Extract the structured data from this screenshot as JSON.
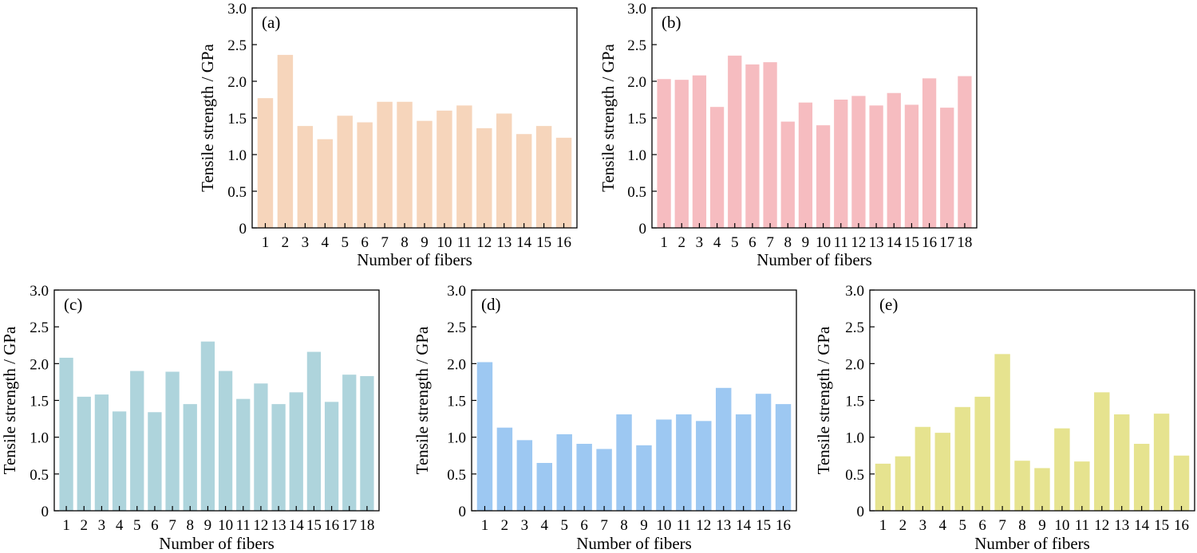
{
  "chart_data": [
    {
      "type": "bar",
      "panel_label": "(a)",
      "xlabel": "Number of fibers",
      "ylabel": "Tensile strength / GPa",
      "ylim": [
        0,
        3.0
      ],
      "yticks": [
        "0",
        "0.5",
        "1.0",
        "1.5",
        "2.0",
        "2.5",
        "3.0"
      ],
      "bar_color": "#f6d5bb",
      "categories": [
        "1",
        "2",
        "3",
        "4",
        "5",
        "6",
        "7",
        "8",
        "9",
        "10",
        "11",
        "12",
        "13",
        "14",
        "15",
        "16"
      ],
      "values": [
        1.77,
        2.36,
        1.39,
        1.21,
        1.53,
        1.44,
        1.72,
        1.72,
        1.46,
        1.6,
        1.67,
        1.36,
        1.56,
        1.28,
        1.39,
        1.23
      ]
    },
    {
      "type": "bar",
      "panel_label": "(b)",
      "xlabel": "Number of fibers",
      "ylabel": "Tensile strength / GPa",
      "ylim": [
        0,
        3.0
      ],
      "yticks": [
        "0",
        "0.5",
        "1.0",
        "1.5",
        "2.0",
        "2.5",
        "3.0"
      ],
      "bar_color": "#f6bcc0",
      "categories": [
        "1",
        "2",
        "3",
        "4",
        "5",
        "6",
        "7",
        "8",
        "9",
        "10",
        "11",
        "12",
        "13",
        "14",
        "15",
        "16",
        "17",
        "18"
      ],
      "values": [
        2.03,
        2.02,
        2.08,
        1.65,
        2.35,
        2.23,
        2.26,
        1.45,
        1.71,
        1.4,
        1.75,
        1.8,
        1.67,
        1.84,
        1.68,
        2.04,
        1.64,
        2.07
      ]
    },
    {
      "type": "bar",
      "panel_label": "(c)",
      "xlabel": "Number of fibers",
      "ylabel": "Tensile strength / GPa",
      "ylim": [
        0,
        3.0
      ],
      "yticks": [
        "0",
        "0.5",
        "1.0",
        "1.5",
        "2.0",
        "2.5",
        "3.0"
      ],
      "bar_color": "#aed4dc",
      "categories": [
        "1",
        "2",
        "3",
        "4",
        "5",
        "6",
        "7",
        "8",
        "9",
        "10",
        "11",
        "12",
        "13",
        "14",
        "15",
        "16",
        "17",
        "18"
      ],
      "values": [
        2.08,
        1.55,
        1.58,
        1.35,
        1.9,
        1.34,
        1.89,
        1.45,
        2.3,
        1.9,
        1.52,
        1.73,
        1.45,
        1.61,
        2.16,
        1.48,
        1.85,
        1.83
      ]
    },
    {
      "type": "bar",
      "panel_label": "(d)",
      "xlabel": "Number of fibers",
      "ylabel": "Tensile strength / GPa",
      "ylim": [
        0,
        3.0
      ],
      "yticks": [
        "0",
        "0.5",
        "1.0",
        "1.5",
        "2.0",
        "2.5",
        "3.0"
      ],
      "bar_color": "#9dc8f2",
      "categories": [
        "1",
        "2",
        "3",
        "4",
        "5",
        "6",
        "7",
        "8",
        "9",
        "10",
        "11",
        "12",
        "13",
        "14",
        "15",
        "16"
      ],
      "values": [
        2.02,
        1.13,
        0.96,
        0.65,
        1.04,
        0.91,
        0.84,
        1.31,
        0.89,
        1.24,
        1.31,
        1.22,
        1.67,
        1.31,
        1.59,
        1.45
      ]
    },
    {
      "type": "bar",
      "panel_label": "(e)",
      "xlabel": "Number of fibers",
      "ylabel": "Tensile strength / GPa",
      "ylim": [
        0,
        3.0
      ],
      "yticks": [
        "0",
        "0.5",
        "1.0",
        "1.5",
        "2.0",
        "2.5",
        "3.0"
      ],
      "bar_color": "#e6e38f",
      "categories": [
        "1",
        "2",
        "3",
        "4",
        "5",
        "6",
        "7",
        "8",
        "9",
        "10",
        "11",
        "12",
        "13",
        "14",
        "15",
        "16"
      ],
      "values": [
        0.64,
        0.74,
        1.14,
        1.06,
        1.41,
        1.55,
        2.13,
        0.68,
        0.58,
        1.12,
        0.67,
        1.61,
        1.31,
        0.91,
        1.32,
        0.75
      ]
    }
  ]
}
